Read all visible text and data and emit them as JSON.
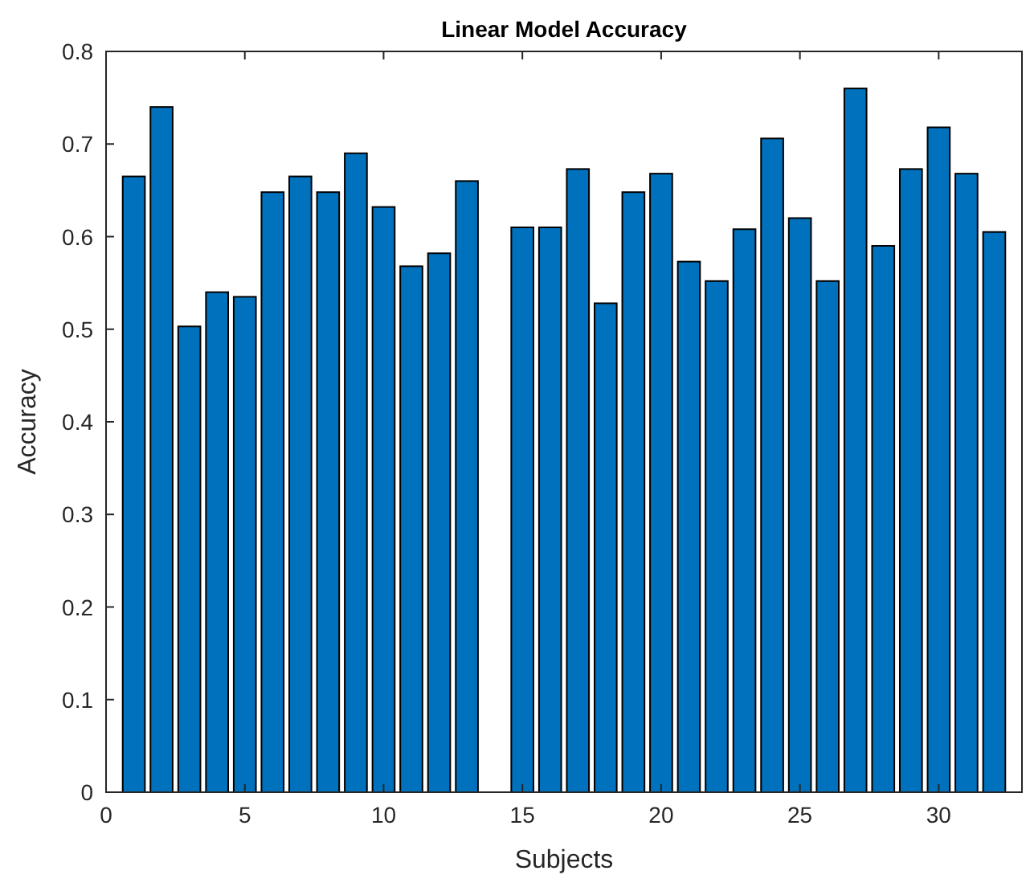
{
  "chart_data": {
    "type": "bar",
    "title": "Linear Model Accuracy",
    "xlabel": "Subjects",
    "ylabel": "Accuracy",
    "x": [
      1,
      2,
      3,
      4,
      5,
      6,
      7,
      8,
      9,
      10,
      11,
      12,
      13,
      14,
      15,
      16,
      17,
      18,
      19,
      20,
      21,
      22,
      23,
      24,
      25,
      26,
      27,
      28,
      29,
      30,
      31,
      32
    ],
    "values": [
      0.665,
      0.74,
      0.503,
      0.54,
      0.535,
      0.648,
      0.665,
      0.648,
      0.69,
      0.632,
      0.568,
      0.582,
      0.66,
      null,
      0.61,
      0.61,
      0.673,
      0.528,
      0.648,
      0.668,
      0.573,
      0.552,
      0.608,
      0.706,
      0.62,
      0.552,
      0.76,
      0.59,
      0.673,
      0.718,
      0.668,
      0.605
    ],
    "color": "#0072bd",
    "xlim": [
      0,
      33
    ],
    "xticks": [
      0,
      5,
      10,
      15,
      20,
      25,
      30
    ],
    "ylim": [
      0,
      0.8
    ],
    "yticks": [
      0,
      0.1,
      0.2,
      0.3,
      0.4,
      0.5,
      0.6,
      0.7,
      0.8
    ],
    "grid": false
  }
}
